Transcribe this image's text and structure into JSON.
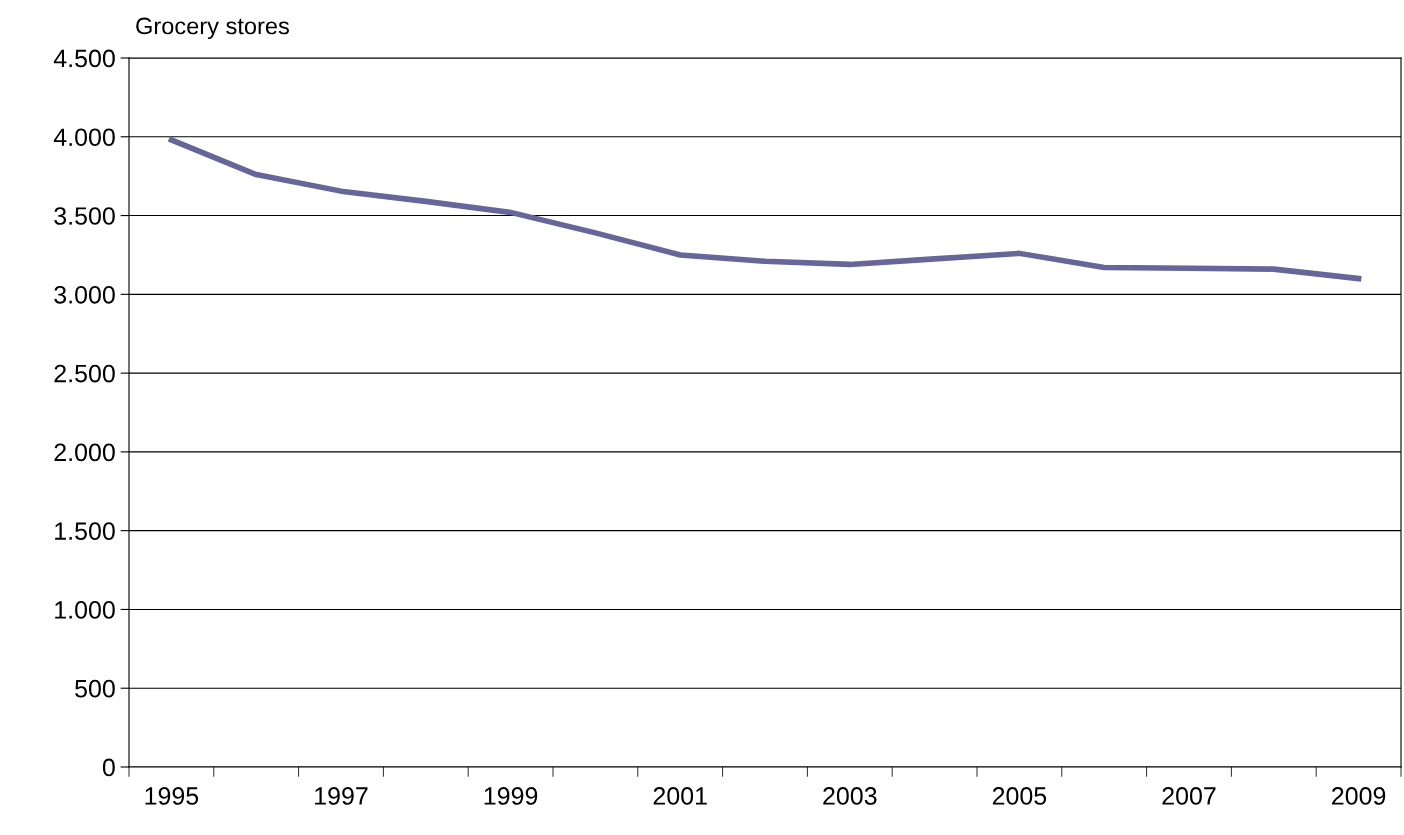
{
  "chart_data": {
    "type": "line",
    "ylabel": "Grocery stores",
    "categories": [
      "1995",
      null,
      "1997",
      null,
      "1999",
      null,
      "2001",
      null,
      "2003",
      null,
      "2005",
      null,
      "2007",
      null,
      "2009"
    ],
    "series": [
      {
        "color": "#66669a",
        "values": [
          3980,
          3760,
          3655,
          3590,
          3520,
          3390,
          3250,
          3210,
          3190,
          3225,
          3260,
          3170,
          3165,
          3160,
          3100
        ]
      }
    ],
    "ylim": [
      0,
      4500
    ],
    "yticks": [
      0,
      500,
      {
        "value": 1000,
        "label": "1.000"
      },
      {
        "value": 1500,
        "label": "1.500"
      },
      {
        "value": 2000,
        "label": "2.000"
      },
      {
        "value": 2500,
        "label": "2.500"
      },
      {
        "value": 3000,
        "label": "3.000"
      },
      {
        "value": 3500,
        "label": "3.500"
      },
      {
        "value": 4000,
        "label": "4.000"
      },
      {
        "value": 4500,
        "label": "4.500"
      }
    ],
    "grid": "y",
    "legend": false,
    "marker": "none",
    "line_style": "solid"
  }
}
